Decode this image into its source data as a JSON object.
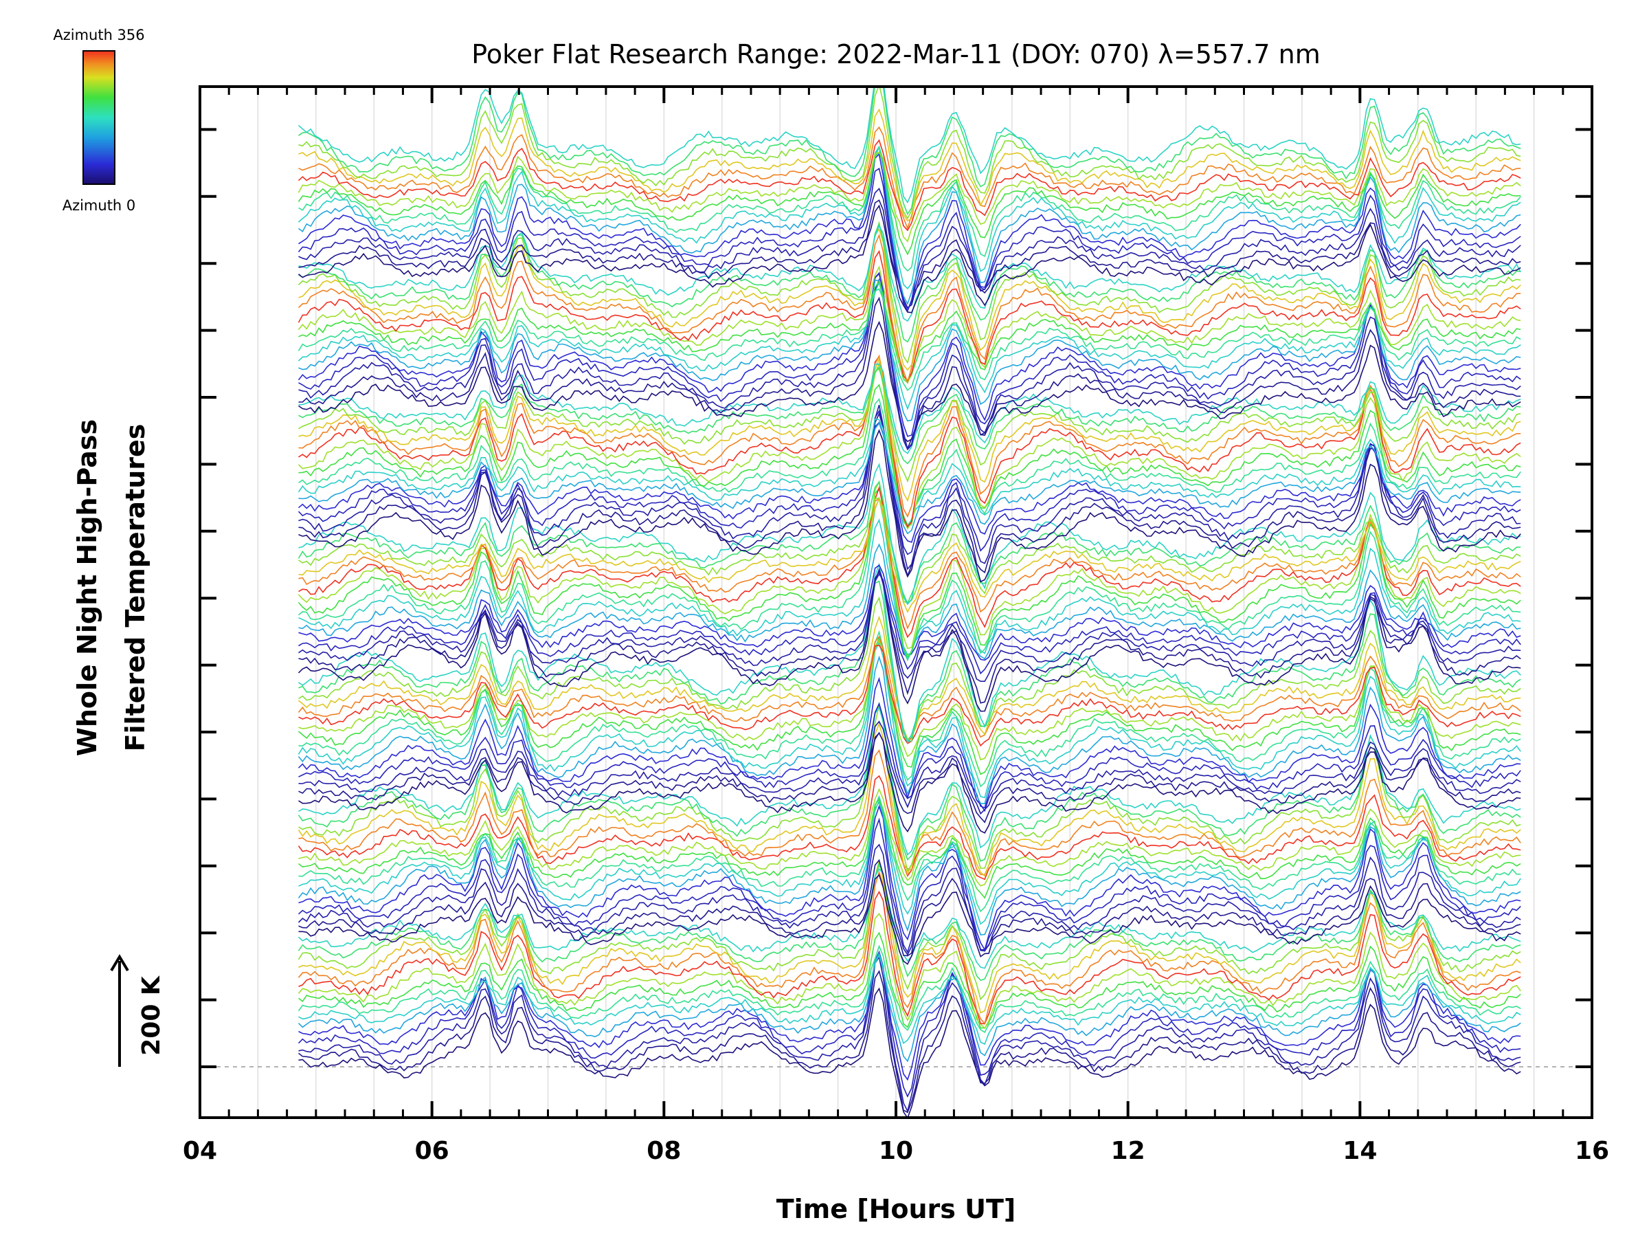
{
  "chart_data": {
    "type": "line",
    "title": "Poker Flat Research Range: 2022-Mar-11 (DOY: 070) λ=557.7 nm",
    "xlabel": "Time [Hours UT]",
    "ylabel_line1": "Whole Night High-Pass",
    "ylabel_line2": "Filtered Temperatures",
    "scale_bar_label": "200 K",
    "xlim": [
      4,
      16
    ],
    "x_ticks": [
      "04",
      "06",
      "08",
      "10",
      "12",
      "14",
      "16"
    ],
    "x_tick_values": [
      4,
      6,
      8,
      10,
      12,
      14,
      16
    ],
    "y_ticks_count": 15,
    "grid": "vertical gridlines every 0.5 h",
    "legend_top_label": "Azimuth 356",
    "legend_bottom_label": "Azimuth 0",
    "colormap": "rainbow",
    "colormap_stops": [
      "#1a0d6b",
      "#2b2bd6",
      "#1fa0e0",
      "#2ee0c0",
      "#3fe040",
      "#d8e020",
      "#f09020",
      "#f03020"
    ],
    "time_range_hours": [
      4.85,
      15.4
    ],
    "series_groups": 7,
    "lines_per_group": 16,
    "baseline_dashed": true,
    "key_features": [
      {
        "x": 6.45,
        "y": 1.0
      },
      {
        "x": 6.75,
        "y": 0.9
      },
      {
        "x": 9.85,
        "y": 1.9
      },
      {
        "x": 10.1,
        "y": -1.2
      },
      {
        "x": 10.5,
        "y": 0.8
      },
      {
        "x": 10.75,
        "y": -0.9
      },
      {
        "x": 14.1,
        "y": 1.3
      },
      {
        "x": 14.55,
        "y": 0.7
      }
    ]
  }
}
